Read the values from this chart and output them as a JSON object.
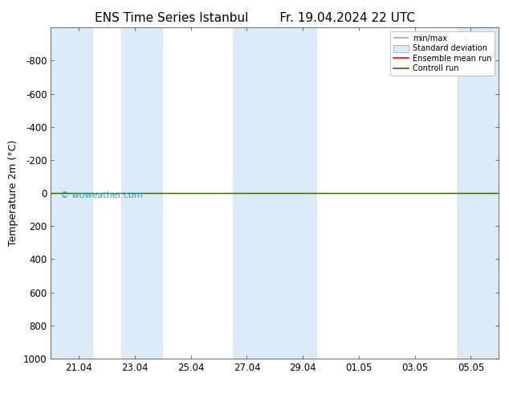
{
  "title_left": "ENS Time Series Istanbul",
  "title_right": "Fr. 19.04.2024 22 UTC",
  "ylabel": "Temperature 2m (°C)",
  "xlim_start": 0,
  "xlim_end": 16,
  "ylim_bottom": 1000,
  "ylim_top": -1000,
  "yticks": [
    -800,
    -600,
    -400,
    -200,
    0,
    200,
    400,
    600,
    800,
    1000
  ],
  "xtick_labels": [
    "21.04",
    "23.04",
    "25.04",
    "27.04",
    "29.04",
    "01.05",
    "03.05",
    "05.05"
  ],
  "xtick_positions": [
    1,
    3,
    5,
    7,
    9,
    11,
    13,
    15
  ],
  "shaded_bands": [
    [
      0.0,
      1.5
    ],
    [
      2.5,
      4.0
    ],
    [
      6.5,
      8.0
    ],
    [
      8.0,
      9.5
    ],
    [
      14.5,
      16.0
    ]
  ],
  "shaded_color": "#daeaf7",
  "bg_color": "#ffffff",
  "green_line_y": 0,
  "red_line_y": 0,
  "watermark": "© woweather.com",
  "watermark_color": "#3399cc",
  "legend_minmax_color": "#aaaaaa",
  "legend_stddev_facecolor": "#daeaf7",
  "legend_stddev_edgecolor": "#aaaaaa",
  "legend_ensemble_color": "#ff0000",
  "legend_control_color": "#336600",
  "title_fontsize": 11,
  "axis_fontsize": 9,
  "tick_fontsize": 8.5
}
